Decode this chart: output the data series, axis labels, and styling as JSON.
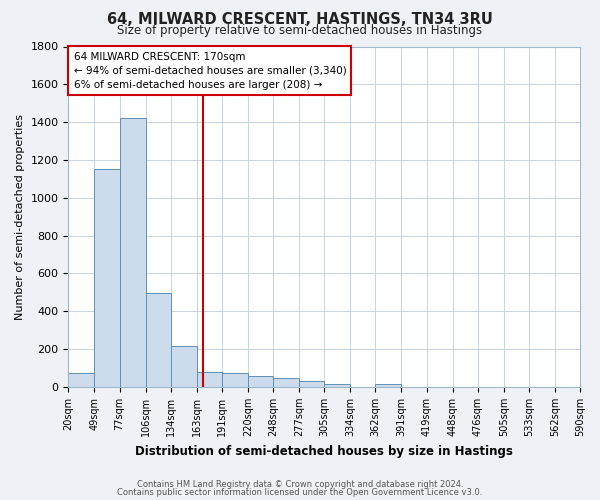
{
  "title": "64, MILWARD CRESCENT, HASTINGS, TN34 3RU",
  "subtitle": "Size of property relative to semi-detached houses in Hastings",
  "xlabel": "Distribution of semi-detached houses by size in Hastings",
  "ylabel": "Number of semi-detached properties",
  "bar_edges": [
    20,
    49,
    77,
    106,
    134,
    163,
    191,
    220,
    248,
    277,
    305,
    334,
    362,
    391,
    419,
    448,
    476,
    505,
    533,
    562,
    590
  ],
  "bar_heights": [
    75,
    1150,
    1420,
    495,
    215,
    80,
    75,
    60,
    45,
    30,
    18,
    0,
    15,
    0,
    0,
    0,
    0,
    0,
    0,
    0
  ],
  "bar_color": "#cddcec",
  "bar_edge_color": "#6090b8",
  "property_size": 170,
  "vline_color": "#cc0000",
  "annotation_line1": "64 MILWARD CRESCENT: 170sqm",
  "annotation_line2": "← 94% of semi-detached houses are smaller (3,340)",
  "annotation_line3": "6% of semi-detached houses are larger (208) →",
  "annotation_box_color": "#ffffff",
  "annotation_box_edge": "#cc0000",
  "ylim": [
    0,
    1800
  ],
  "yticks": [
    0,
    200,
    400,
    600,
    800,
    1000,
    1200,
    1400,
    1600,
    1800
  ],
  "grid_color": "#c8d4de",
  "plot_bg_color": "#ffffff",
  "fig_bg_color": "#eef2f7",
  "footer_line1": "Contains HM Land Registry data © Crown copyright and database right 2024.",
  "footer_line2": "Contains public sector information licensed under the Open Government Licence v3.0."
}
